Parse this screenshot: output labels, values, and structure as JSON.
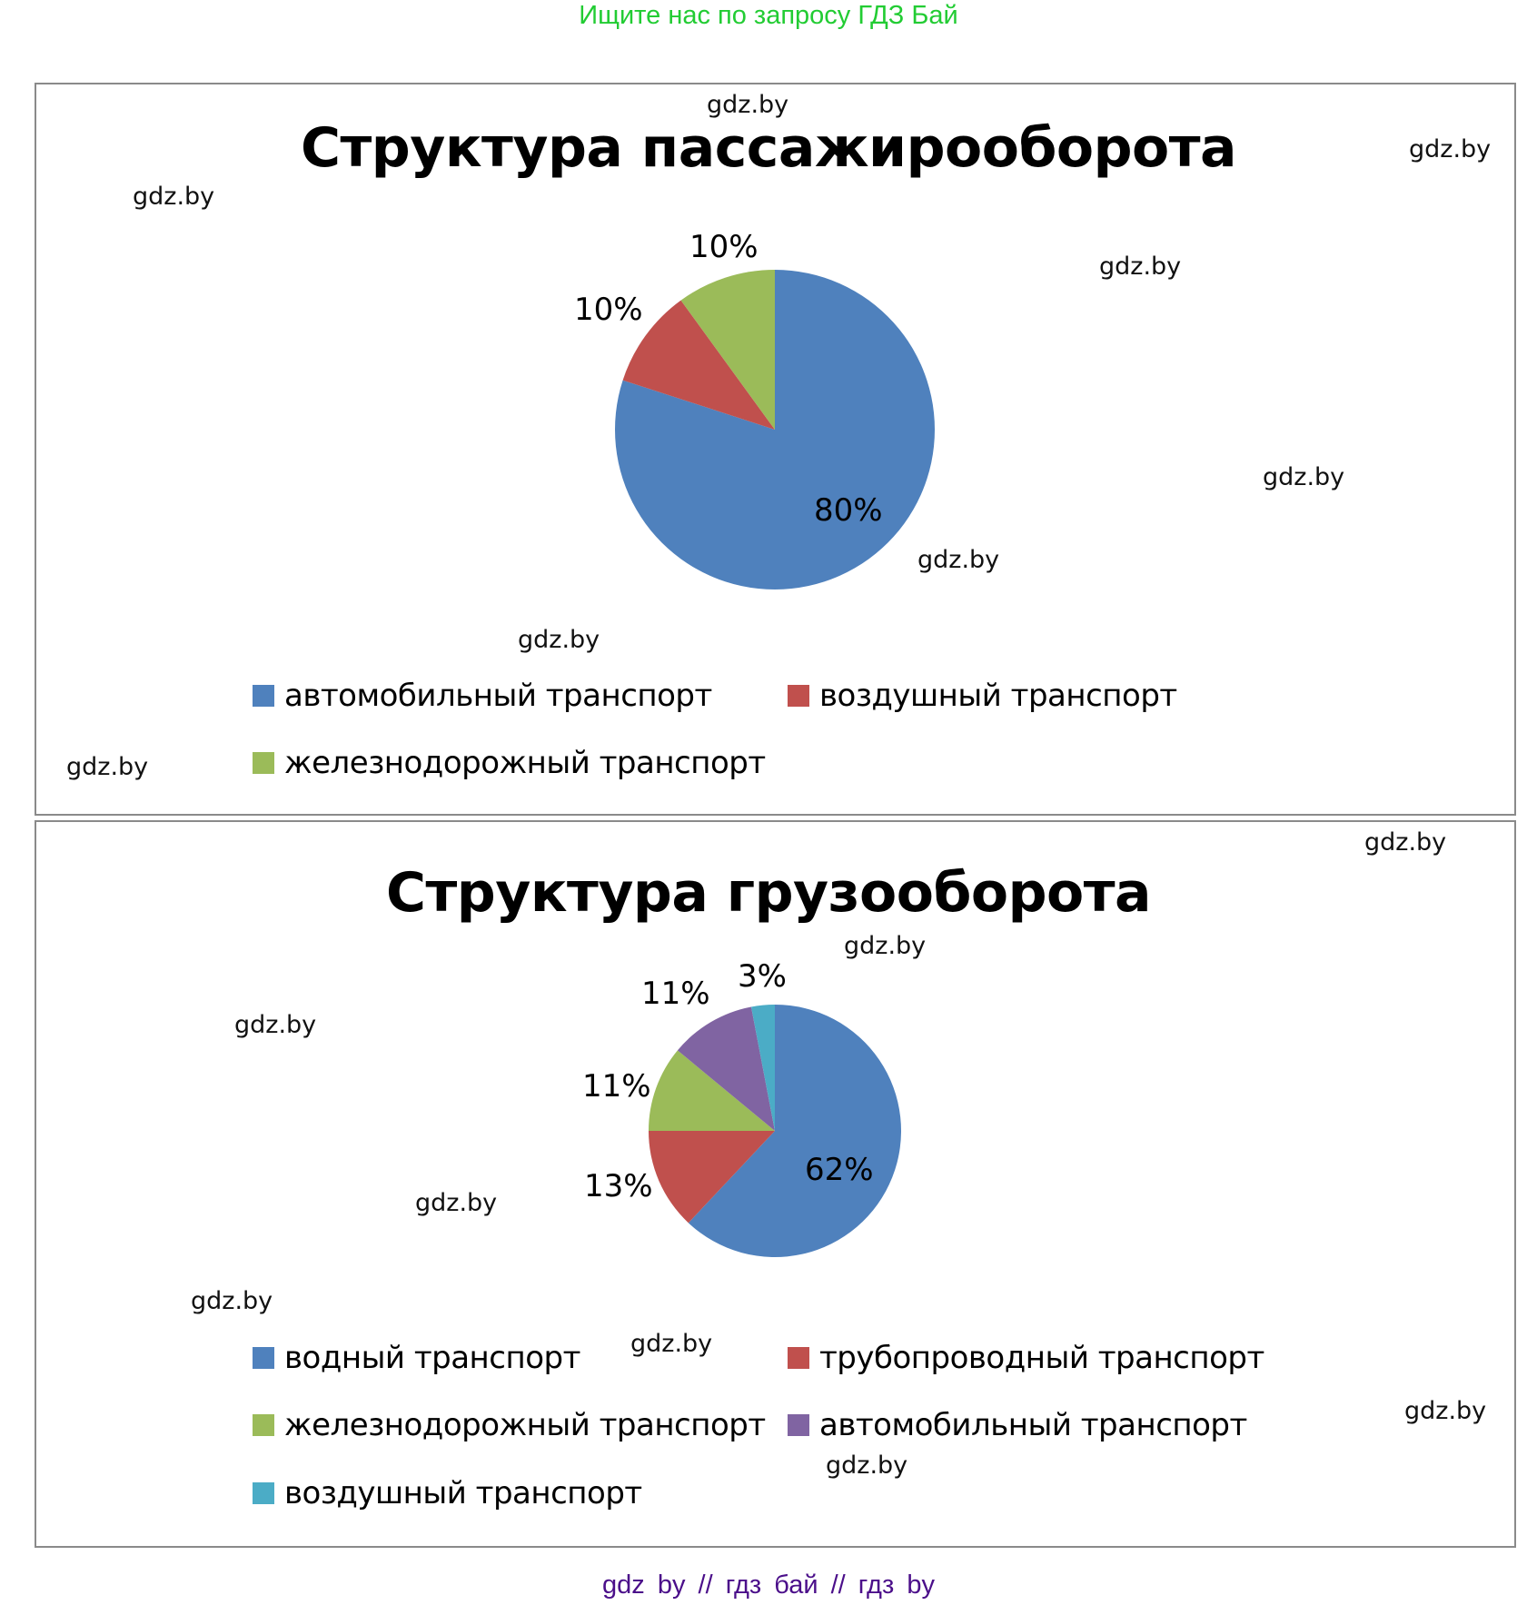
{
  "header": {
    "note": "Ищите нас по запросу ГДЗ Бай",
    "color": "#22cc33"
  },
  "footer": {
    "text": "gdz by  //  гдз бай  //  гдз by",
    "color": "#4b0f8a"
  },
  "watermark": "gdz.by",
  "colors": {
    "blue": "#4f81bd",
    "red": "#c0504d",
    "green": "#9bbb59",
    "purple": "#8064a2",
    "cyan": "#4bacc6",
    "border": "#8a8a8a"
  },
  "charts": [
    {
      "title": "Структура пассажирооборота",
      "labels": [
        "80%",
        "10%",
        "10%"
      ],
      "legend": [
        {
          "label": "автомобильный транспорт",
          "color": "#4f81bd"
        },
        {
          "label": "воздушный транспорт",
          "color": "#c0504d"
        },
        {
          "label": "железнодорожный транспорт",
          "color": "#9bbb59"
        }
      ]
    },
    {
      "title": "Структура грузооборота",
      "labels": [
        "62%",
        "13%",
        "11%",
        "11%",
        "3%"
      ],
      "legend": [
        {
          "label": "водный транспорт",
          "color": "#4f81bd"
        },
        {
          "label": "трубопроводный транспорт",
          "color": "#c0504d"
        },
        {
          "label": "железнодорожный транспорт",
          "color": "#9bbb59"
        },
        {
          "label": "автомобильный транспорт",
          "color": "#8064a2"
        },
        {
          "label": "воздушный транспорт",
          "color": "#4bacc6"
        }
      ]
    }
  ],
  "chart_data": [
    {
      "type": "pie",
      "title": "Структура пассажирооборота",
      "categories": [
        "автомобильный транспорт",
        "воздушный транспорт",
        "железнодорожный транспорт"
      ],
      "values": [
        80,
        10,
        10
      ],
      "unit": "%",
      "colors": [
        "#4f81bd",
        "#c0504d",
        "#9bbb59"
      ],
      "legend_position": "bottom",
      "start_angle": "12 o'clock, clockwise"
    },
    {
      "type": "pie",
      "title": "Структура грузооборота",
      "categories": [
        "водный транспорт",
        "трубопроводный транспорт",
        "железнодорожный транспорт",
        "автомобильный транспорт",
        "воздушный транспорт"
      ],
      "values": [
        62,
        13,
        11,
        11,
        3
      ],
      "unit": "%",
      "colors": [
        "#4f81bd",
        "#c0504d",
        "#9bbb59",
        "#8064a2",
        "#4bacc6"
      ],
      "legend_position": "bottom",
      "start_angle": "12 o'clock, clockwise"
    }
  ]
}
